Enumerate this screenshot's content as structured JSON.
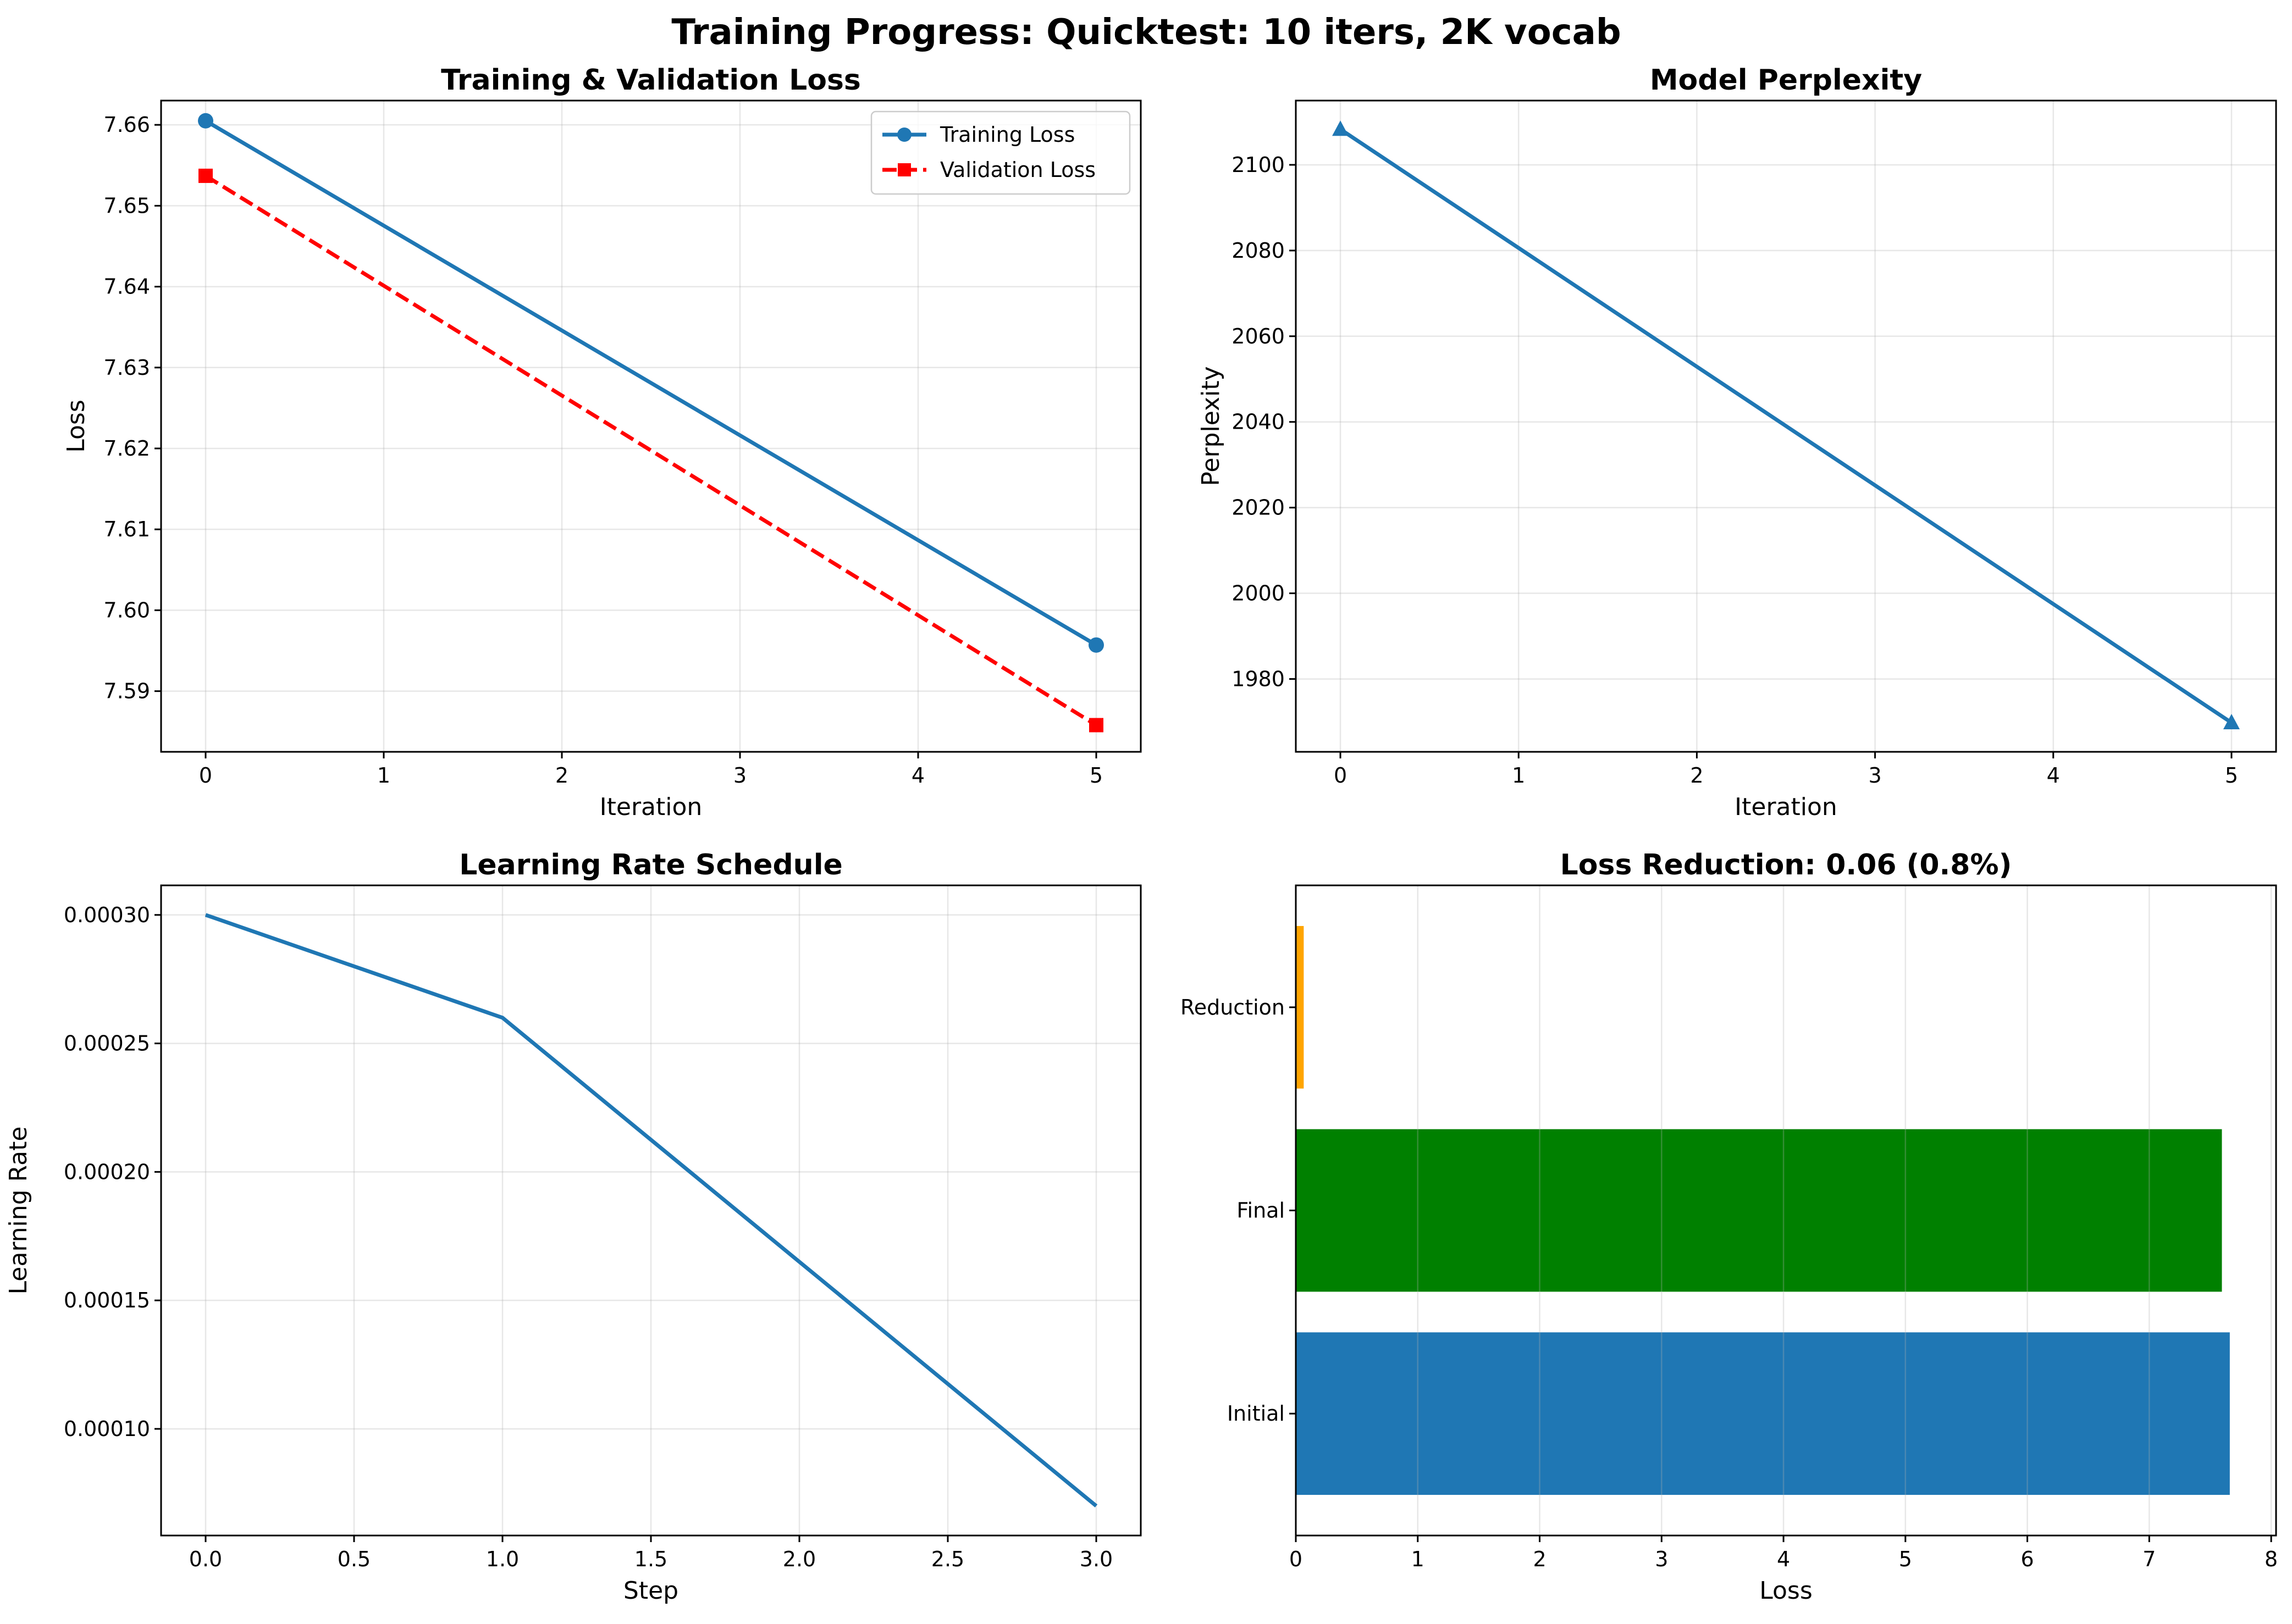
{
  "figure": {
    "suptitle": "Training Progress: Quicktest: 10 iters, 2K vocab"
  },
  "chart_data": [
    {
      "type": "line",
      "title": "Training & Validation Loss",
      "xlabel": "Iteration",
      "ylabel": "Loss",
      "xlim": [
        -0.25,
        5.25
      ],
      "ylim": [
        7.5825,
        7.663
      ],
      "xticks": [
        0,
        1,
        2,
        3,
        4,
        5
      ],
      "xtick_labels": [
        "0",
        "1",
        "2",
        "3",
        "4",
        "5"
      ],
      "yticks": [
        7.59,
        7.6,
        7.61,
        7.62,
        7.63,
        7.64,
        7.65,
        7.66
      ],
      "ytick_labels": [
        "7.59",
        "7.60",
        "7.61",
        "7.62",
        "7.63",
        "7.64",
        "7.65",
        "7.66"
      ],
      "grid": true,
      "legend": "top-right",
      "series": [
        {
          "name": "Training Loss",
          "x": [
            0,
            5
          ],
          "values": [
            7.6605,
            7.5957
          ],
          "color": "#1f77b4",
          "linestyle": "solid",
          "marker": "circle"
        },
        {
          "name": "Validation Loss",
          "x": [
            0,
            5
          ],
          "values": [
            7.6537,
            7.5858
          ],
          "color": "#ff0000",
          "linestyle": "dashed",
          "marker": "square"
        }
      ]
    },
    {
      "type": "line",
      "title": "Model Perplexity",
      "xlabel": "Iteration",
      "ylabel": "Perplexity",
      "xlim": [
        -0.25,
        5.25
      ],
      "ylim": [
        1963,
        2115
      ],
      "xticks": [
        0,
        1,
        2,
        3,
        4,
        5
      ],
      "xtick_labels": [
        "0",
        "1",
        "2",
        "3",
        "4",
        "5"
      ],
      "yticks": [
        1980,
        2000,
        2020,
        2040,
        2060,
        2080,
        2100
      ],
      "ytick_labels": [
        "1980",
        "2000",
        "2020",
        "2040",
        "2060",
        "2080",
        "2100"
      ],
      "grid": true,
      "series": [
        {
          "name": "Perplexity",
          "x": [
            0,
            5
          ],
          "values": [
            2108.3,
            1969.8
          ],
          "color": "#1f77b4",
          "linestyle": "solid",
          "marker": "triangle"
        }
      ]
    },
    {
      "type": "line",
      "title": "Learning Rate Schedule",
      "xlabel": "Step",
      "ylabel": "Learning Rate",
      "xlim": [
        -0.15,
        3.15
      ],
      "ylim": [
        5.85e-05,
        0.0003115
      ],
      "xticks": [
        0,
        0.5,
        1,
        1.5,
        2,
        2.5,
        3
      ],
      "xtick_labels": [
        "0.0",
        "0.5",
        "1.0",
        "1.5",
        "2.0",
        "2.5",
        "3.0"
      ],
      "yticks": [
        0.0001,
        0.00015,
        0.0002,
        0.00025,
        0.0003
      ],
      "ytick_labels": [
        "0.00010",
        "0.00015",
        "0.00020",
        "0.00025",
        "0.00030"
      ],
      "grid": true,
      "series": [
        {
          "name": "Learning Rate",
          "x": [
            0,
            1,
            3
          ],
          "values": [
            0.0003,
            0.00026,
            7e-05
          ],
          "color": "#1f77b4",
          "linestyle": "solid",
          "marker": "none"
        }
      ]
    },
    {
      "type": "bar",
      "orientation": "horizontal",
      "title": "Loss Reduction: 0.06 (0.8%)",
      "xlabel": "Loss",
      "ylabel": "",
      "xlim": [
        0,
        8.04
      ],
      "xticks": [
        0,
        1,
        2,
        3,
        4,
        5,
        6,
        7,
        8
      ],
      "xtick_labels": [
        "0",
        "1",
        "2",
        "3",
        "4",
        "5",
        "6",
        "7",
        "8"
      ],
      "grid": true,
      "categories": [
        "Initial",
        "Final",
        "Reduction"
      ],
      "values": [
        7.6605,
        7.5957,
        0.0648
      ],
      "colors": [
        "#1f77b4",
        "#008000",
        "#ffa500"
      ]
    }
  ]
}
